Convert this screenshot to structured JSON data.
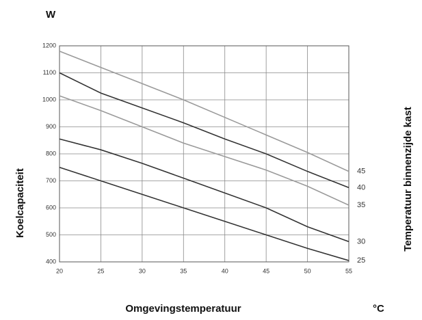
{
  "chart_data": {
    "type": "line",
    "y_unit": "W",
    "x_unit": "°C",
    "xlabel": "Omgevingstemperatuur",
    "ylabel": "Koelcapaciteit",
    "legend_title": "Temperatuur binnenzijde kast",
    "x": [
      20,
      25,
      30,
      35,
      40,
      45,
      50,
      55
    ],
    "series": [
      {
        "name": "45",
        "color": "#9a9a9a",
        "values": [
          1180,
          1120,
          1060,
          1000,
          935,
          870,
          805,
          735
        ]
      },
      {
        "name": "40",
        "color": "#333333",
        "values": [
          1100,
          1025,
          970,
          915,
          855,
          800,
          735,
          675
        ]
      },
      {
        "name": "35",
        "color": "#9a9a9a",
        "values": [
          1015,
          960,
          900,
          840,
          790,
          740,
          680,
          610
        ]
      },
      {
        "name": "30",
        "color": "#333333",
        "values": [
          855,
          815,
          765,
          710,
          655,
          600,
          530,
          475
        ]
      },
      {
        "name": "25",
        "color": "#333333",
        "values": [
          750,
          700,
          650,
          600,
          550,
          500,
          450,
          405
        ]
      }
    ],
    "xlim": [
      20,
      55
    ],
    "xticks": [
      20,
      25,
      30,
      35,
      40,
      45,
      50,
      55
    ],
    "ylim": [
      400,
      1200
    ],
    "yticks": [
      400,
      500,
      600,
      700,
      800,
      900,
      1000,
      1100,
      1200
    ],
    "grid": true
  }
}
